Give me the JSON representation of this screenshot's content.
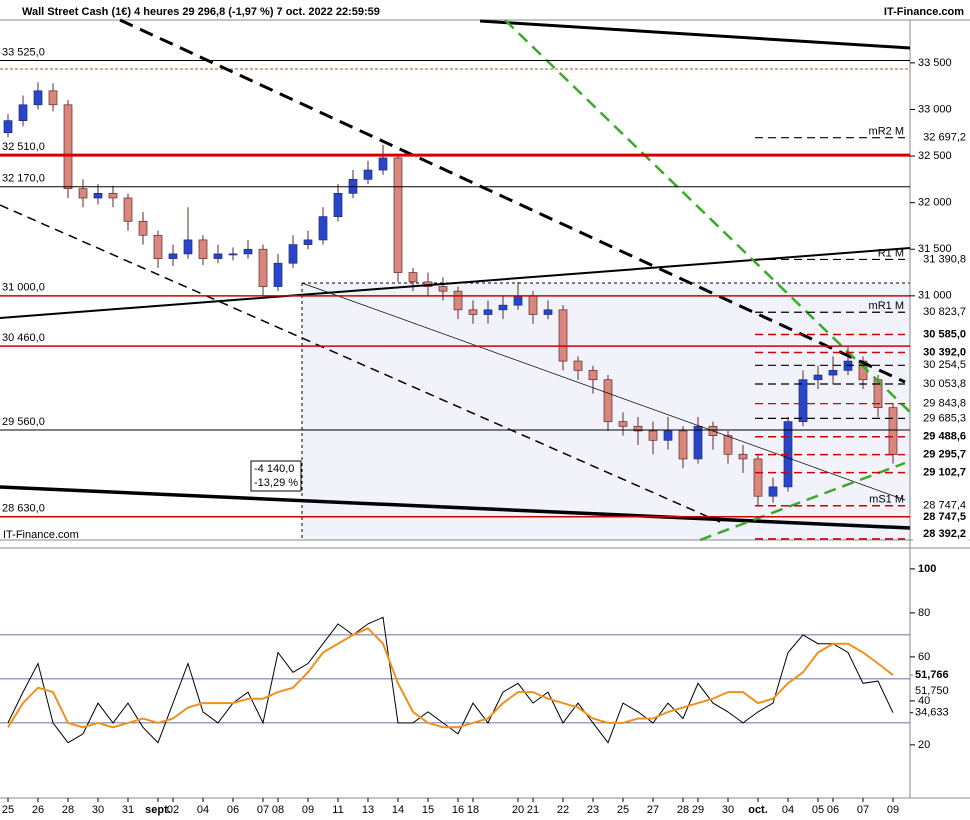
{
  "header": {
    "title": "Wall Street Cash (1€) 4 heures 29 296,8 (-1,97 %) 7 oct. 2022 22:59:59",
    "source": "IT-Finance.com",
    "watermark": "IT-Finance.com"
  },
  "chart_data": [
    {
      "type": "candlestick",
      "up_color": "#2a46c8",
      "down_color": "#d9867c",
      "edge_color": "#5a2a2a",
      "ylim": [
        28380,
        33960
      ],
      "yticks": [
        {
          "value": 33500,
          "label": "33 500"
        },
        {
          "value": 33000,
          "label": "33 000"
        },
        {
          "value": 32500,
          "label": "32 500"
        },
        {
          "value": 32000,
          "label": "32 000"
        },
        {
          "value": 31500,
          "label": "31 500"
        },
        {
          "value": 31000,
          "label": "31 000"
        }
      ],
      "categories": [
        "25",
        null,
        "26",
        null,
        "28",
        null,
        "30",
        null,
        "31",
        null,
        "sept.",
        "02",
        null,
        "04",
        null,
        "06",
        null,
        "07",
        "08",
        null,
        "09",
        null,
        "11",
        null,
        "13",
        null,
        "14",
        null,
        "15",
        null,
        "16",
        "18",
        null,
        null,
        "20",
        "21",
        null,
        "22",
        null,
        "23",
        null,
        "25",
        null,
        "27",
        null,
        "28",
        "29",
        null,
        "30",
        null,
        "oct.",
        null,
        "04",
        null,
        "05",
        "06",
        null,
        "07",
        null,
        "09"
      ],
      "open": [
        32750,
        32880,
        33050,
        33200,
        33050,
        32150,
        32050,
        32100,
        32050,
        31800,
        31650,
        31400,
        31450,
        31600,
        31400,
        31450,
        31450,
        31500,
        31100,
        31350,
        31550,
        31600,
        31850,
        32100,
        32250,
        32350,
        32480,
        31250,
        31150,
        31100,
        31050,
        30850,
        30800,
        30850,
        30900,
        31000,
        30800,
        30850,
        30300,
        30200,
        30100,
        29650,
        29600,
        29550,
        29450,
        29550,
        29250,
        29600,
        29500,
        29300,
        29250,
        28850,
        28950,
        29650,
        30100,
        30150,
        30200,
        30300,
        30100,
        29800
      ],
      "high": [
        32950,
        33150,
        33290,
        33280,
        33100,
        32250,
        32200,
        32180,
        32100,
        31900,
        31700,
        31550,
        31950,
        31650,
        31550,
        31520,
        31600,
        31550,
        31450,
        31650,
        31700,
        31950,
        32200,
        32350,
        32450,
        32620,
        32500,
        31300,
        31250,
        31200,
        31100,
        30950,
        30950,
        31000,
        31150,
        31050,
        30950,
        30900,
        30350,
        30250,
        30150,
        29750,
        29700,
        29650,
        29700,
        29600,
        29700,
        29650,
        29550,
        29400,
        29300,
        29050,
        29700,
        30200,
        30250,
        30350,
        30450,
        30350,
        30150,
        29850
      ],
      "low": [
        32700,
        32820,
        33000,
        32980,
        32050,
        31950,
        31980,
        31950,
        31700,
        31550,
        31300,
        31320,
        31400,
        31330,
        31350,
        31380,
        31400,
        31000,
        31050,
        31300,
        31500,
        31550,
        31800,
        32050,
        32200,
        32300,
        31150,
        31050,
        31000,
        30950,
        30750,
        30700,
        30700,
        30750,
        30850,
        30700,
        30750,
        30200,
        30100,
        29950,
        29550,
        29500,
        29400,
        29300,
        29350,
        29150,
        29200,
        29350,
        29200,
        29100,
        28750,
        28780,
        28900,
        29600,
        30000,
        30050,
        30150,
        30000,
        29700,
        29200
      ],
      "close": [
        32880,
        33050,
        33200,
        33050,
        32150,
        32050,
        32100,
        32050,
        31800,
        31650,
        31400,
        31450,
        31600,
        31400,
        31450,
        31450,
        31500,
        31100,
        31350,
        31550,
        31600,
        31850,
        32100,
        32250,
        32350,
        32480,
        31250,
        31150,
        31100,
        31050,
        30850,
        30800,
        30850,
        30900,
        31000,
        30800,
        30850,
        30300,
        30200,
        30100,
        29650,
        29600,
        29550,
        29450,
        29550,
        29250,
        29600,
        29500,
        29300,
        29250,
        28850,
        28950,
        29650,
        30100,
        30150,
        30200,
        30300,
        30100,
        29800,
        29296.8
      ],
      "levels": [
        {
          "value": 33525,
          "label": "33 525,0",
          "color": "#000000"
        },
        {
          "value": 32510,
          "label": "32 510,0",
          "color": "#d00000"
        },
        {
          "value": 32170,
          "label": "32 170,0",
          "color": "#000000"
        },
        {
          "value": 31000,
          "label": "31 000,0",
          "color": "#d00000"
        },
        {
          "value": 30460,
          "label": "30 460,0",
          "color": "#d00000"
        },
        {
          "value": 29560,
          "label": "29 560,0",
          "color": "#000000"
        },
        {
          "value": 28630,
          "label": "28 630,0",
          "color": "#d00000"
        }
      ],
      "price_tags": [
        {
          "value": 32697.2,
          "label": "32 697,2",
          "name": "mR2 M",
          "color": "#000000"
        },
        {
          "value": 31390.8,
          "label": "31 390,8",
          "name": "R1 M",
          "color": "#000000"
        },
        {
          "value": 30823.7,
          "label": "30 823,7",
          "name": "mR1 M",
          "color": "#3355bb"
        },
        {
          "value": 30585.0,
          "label": "30 585,0",
          "color": "#d00000",
          "bold": true
        },
        {
          "value": 30392.0,
          "label": "30 392,0",
          "color": "#d00000",
          "bold": true
        },
        {
          "value": 30254.5,
          "label": "30 254,5",
          "color": "#3355bb"
        },
        {
          "value": 30053.8,
          "label": "30 053,8",
          "color": "#000000"
        },
        {
          "value": 29843.8,
          "label": "29 843,8",
          "color": "#d00000"
        },
        {
          "value": 29685.3,
          "label": "29 685,3",
          "color": "#3355bb"
        },
        {
          "value": 29488.6,
          "label": "29 488,6",
          "color": "#d00000",
          "bold": true
        },
        {
          "value": 29295.7,
          "label": "29 295,7",
          "color": "#d00000",
          "bold": true
        },
        {
          "value": 29102.7,
          "label": "29 102,7",
          "color": "#d00000",
          "bold": true
        },
        {
          "value": 28747.4,
          "label": "28 747,4",
          "name": "mS1 M",
          "color": "#000000"
        },
        {
          "value": 28747.5,
          "label": "28 747,5",
          "color": "#d00000",
          "bold": true
        },
        {
          "value": 28392.2,
          "label": "28 392,2",
          "color": "#d00000",
          "bold": true
        }
      ],
      "annotations": [
        "-4 140,0",
        "-13,29 %"
      ]
    },
    {
      "type": "line",
      "ylim": [
        9.5,
        109.5
      ],
      "yticks": [
        100,
        80,
        60,
        40,
        20
      ],
      "levels": [
        70,
        50,
        30
      ],
      "level_color": "#334488",
      "series": [
        {
          "color": "#000000",
          "values": [
            30,
            44,
            57,
            30,
            21,
            25,
            39,
            30,
            39,
            28,
            21,
            39,
            57,
            35,
            30,
            39,
            44,
            30,
            62,
            53,
            57,
            66,
            75,
            70,
            75,
            78,
            30,
            30,
            35,
            30,
            25,
            39,
            30,
            44,
            48,
            39,
            44,
            30,
            39,
            30,
            21,
            39,
            35,
            30,
            39,
            32,
            48,
            39,
            35,
            30,
            35,
            39,
            62,
            70,
            66,
            66,
            62,
            48,
            49,
            34.633
          ]
        },
        {
          "color": "#f0901e",
          "values": [
            28,
            39,
            46,
            44,
            30,
            28,
            30,
            28,
            30,
            32,
            30,
            32,
            37,
            39,
            39,
            39,
            41,
            41,
            44,
            46,
            53,
            62,
            66,
            70,
            73,
            66,
            48,
            35,
            30,
            28,
            28,
            30,
            32,
            39,
            44,
            44,
            41,
            39,
            37,
            32,
            30,
            30,
            32,
            32,
            35,
            37,
            39,
            41,
            44,
            44,
            39,
            41,
            48,
            53,
            62,
            66,
            66,
            62,
            57,
            51.75
          ]
        }
      ],
      "price_tags": [
        {
          "value": 51.766,
          "label": "51,766",
          "color": "#d00000"
        },
        {
          "value": 51.75,
          "label": "51,750",
          "color": "#f0901e"
        },
        {
          "value": 34.633,
          "label": "34,633",
          "color": "#000000"
        }
      ]
    }
  ]
}
